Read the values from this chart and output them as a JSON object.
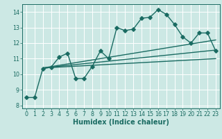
{
  "xlabel": "Humidex (Indice chaleur)",
  "bg_color": "#cce8e4",
  "grid_color": "#ffffff",
  "line_color": "#1a6b62",
  "xlim": [
    -0.5,
    23.5
  ],
  "ylim": [
    7.8,
    14.5
  ],
  "xticks": [
    0,
    1,
    2,
    3,
    4,
    5,
    6,
    7,
    8,
    9,
    10,
    11,
    12,
    13,
    14,
    15,
    16,
    17,
    18,
    19,
    20,
    21,
    22,
    23
  ],
  "yticks": [
    8,
    9,
    10,
    11,
    12,
    13,
    14
  ],
  "main_x": [
    0,
    1,
    2,
    3,
    4,
    5,
    6,
    7,
    8,
    9,
    10,
    11,
    12,
    13,
    14,
    15,
    16,
    17,
    18,
    19,
    20,
    21,
    22,
    23
  ],
  "main_y": [
    8.5,
    8.5,
    10.35,
    10.45,
    11.1,
    11.35,
    9.72,
    9.72,
    10.5,
    11.5,
    11.0,
    13.0,
    12.8,
    12.9,
    13.6,
    13.65,
    14.15,
    13.85,
    13.2,
    12.4,
    12.0,
    12.65,
    12.65,
    11.5
  ],
  "trend1_x": [
    2,
    23
  ],
  "trend1_y": [
    10.4,
    12.2
  ],
  "trend2_x": [
    2,
    23
  ],
  "trend2_y": [
    10.4,
    11.55
  ],
  "trend3_x": [
    2,
    23
  ],
  "trend3_y": [
    10.4,
    11.0
  ],
  "marker": "D",
  "markersize": 2.8,
  "linewidth": 1.0,
  "tick_fontsize": 5.8,
  "label_fontsize": 7.0
}
